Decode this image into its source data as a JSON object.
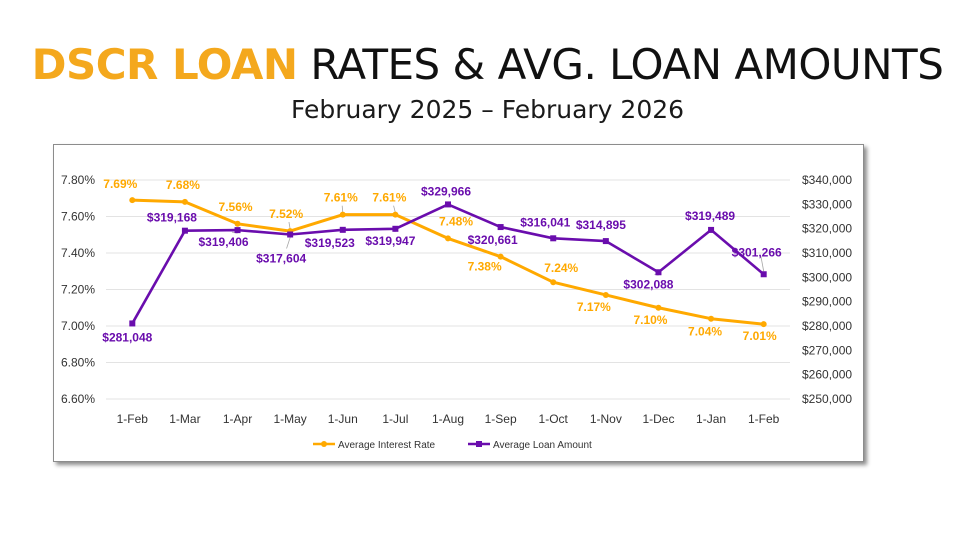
{
  "header": {
    "title_highlight": "DSCR LOAN",
    "title_rest": " RATES & AVG. LOAN AMOUNTS",
    "subtitle": "February 2025 – February 2026"
  },
  "colors": {
    "accent": "#F4A81D",
    "rate": "#FFA900",
    "amount": "#6A0DAD"
  },
  "chart_data": {
    "type": "line",
    "title": "DSCR LOAN RATES & AVG. LOAN AMOUNTS",
    "subtitle": "February 2025 – February 2026",
    "categories": [
      "1-Feb",
      "1-Mar",
      "1-Apr",
      "1-May",
      "1-Jun",
      "1-Jul",
      "1-Aug",
      "1-Sep",
      "1-Oct",
      "1-Nov",
      "1-Dec",
      "1-Jan",
      "1-Feb"
    ],
    "series": [
      {
        "name": "Average Interest Rate",
        "axis": "left",
        "color": "#FFA900",
        "marker": "circle",
        "values": [
          7.69,
          7.68,
          7.56,
          7.52,
          7.61,
          7.61,
          7.48,
          7.38,
          7.24,
          7.17,
          7.1,
          7.04,
          7.01
        ],
        "labels": [
          "7.69%",
          "7.68%",
          "7.56%",
          "7.52%",
          "7.61%",
          "7.61%",
          "7.48%",
          "7.38%",
          "7.24%",
          "7.17%",
          "7.10%",
          "7.04%",
          "7.01%"
        ]
      },
      {
        "name": "Average Loan Amount",
        "axis": "right",
        "color": "#6A0DAD",
        "marker": "square",
        "values": [
          281048,
          319168,
          319406,
          317604,
          319523,
          319947,
          329966,
          320661,
          316041,
          314895,
          302088,
          319489,
          301266
        ],
        "labels": [
          "$281,048",
          "$319,168",
          "$319,406",
          "$317,604",
          "$319,523",
          "$319,947",
          "$329,966",
          "$320,661",
          "$316,041",
          "$314,895",
          "$302,088",
          "$319,489",
          "$301,266"
        ]
      }
    ],
    "y_left": {
      "min": 6.6,
      "max": 7.8,
      "ticks": [
        "7.80%",
        "7.60%",
        "7.40%",
        "7.20%",
        "7.00%",
        "6.80%",
        "6.60%"
      ]
    },
    "y_right": {
      "min": 250000,
      "max": 340000,
      "ticks": [
        "$340,000",
        "$330,000",
        "$320,000",
        "$310,000",
        "$300,000",
        "$290,000",
        "$280,000",
        "$270,000",
        "$260,000",
        "$250,000"
      ]
    },
    "grid": true,
    "legend": "bottom"
  }
}
